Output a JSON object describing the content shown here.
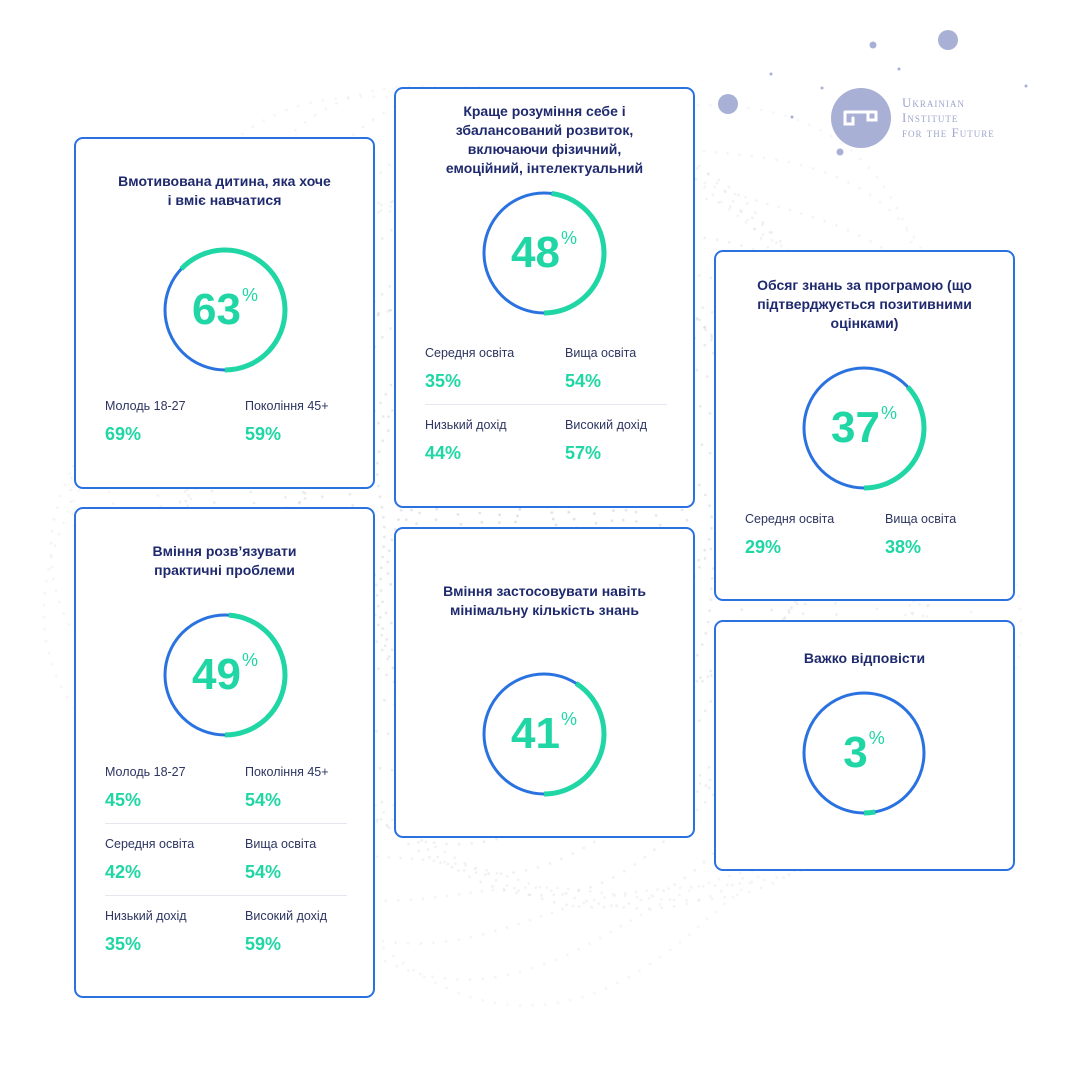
{
  "logo": {
    "lines": [
      "Ukrainian",
      "Institute",
      "for the Future"
    ],
    "icon": "key-icon"
  },
  "colors": {
    "border": "#2a72e0",
    "ring_fill": "#1fd6a4",
    "ring_track": "#2a72e0",
    "title": "#1f2a6e"
  },
  "cards": [
    {
      "id": "motivated-child",
      "title": "Вмотивована дитина, яка хоче і вміє навчатися",
      "value": "63",
      "pct_symbol": "%",
      "stats": [
        {
          "label": "Молодь 18-27",
          "value": "69%"
        },
        {
          "label": "Покоління 45+",
          "value": "59%"
        }
      ]
    },
    {
      "id": "self-understanding",
      "title": "Краще розуміння себе і збалансований розвиток, включаючи фізичний, емоційний, інтелектуальний",
      "value": "48",
      "pct_symbol": "%",
      "stats": [
        {
          "label": "Середня освіта",
          "value": "35%"
        },
        {
          "label": "Вища освіта",
          "value": "54%"
        },
        {
          "label": "Низький дохід",
          "value": "44%"
        },
        {
          "label": "Високий дохід",
          "value": "57%"
        }
      ]
    },
    {
      "id": "knowledge-volume",
      "title": "Обсяг знань за програмою (що підтверджується позитивними оцінками)",
      "value": "37",
      "pct_symbol": "%",
      "stats": [
        {
          "label": "Середня освіта",
          "value": "29%"
        },
        {
          "label": "Вища освіта",
          "value": "38%"
        }
      ]
    },
    {
      "id": "practical-problems",
      "title": "Вміння розв’язувати практичні проблеми",
      "value": "49",
      "pct_symbol": "%",
      "stats": [
        {
          "label": "Молодь 18-27",
          "value": "45%"
        },
        {
          "label": "Покоління 45+",
          "value": "54%"
        },
        {
          "label": "Середня освіта",
          "value": "42%"
        },
        {
          "label": "Вища освіта",
          "value": "54%"
        },
        {
          "label": "Низький дохід",
          "value": "35%"
        },
        {
          "label": "Високий дохід",
          "value": "59%"
        }
      ]
    },
    {
      "id": "apply-knowledge",
      "title": "Вміння застосовувати навіть мінімальну кількість знань",
      "value": "41",
      "pct_symbol": "%",
      "stats": []
    },
    {
      "id": "hard-to-answer",
      "title": "Важко відповісти",
      "value": "3",
      "pct_symbol": "%",
      "stats": []
    }
  ],
  "chart_data": {
    "type": "pie",
    "categories": [
      "Вмотивована дитина, яка хоче і вміє навчатися",
      "Краще розуміння себе і збалансований розвиток, включаючи фізичний, емоційний, інтелектуальний",
      "Обсяг знань за програмою (що підтверджується позитивними оцінками)",
      "Вміння розв’язувати практичні проблеми",
      "Вміння застосовувати навіть мінімальну кількість знань",
      "Важко відповісти"
    ],
    "values": [
      63,
      48,
      37,
      49,
      41,
      3
    ],
    "breakdowns": {
      "Вмотивована дитина, яка хоче і вміє навчатися": {
        "Молодь 18-27": 69,
        "Покоління 45+": 59
      },
      "Краще розуміння себе і збалансований розвиток, включаючи фізичний, емоційний, інтелектуальний": {
        "Середня освіта": 35,
        "Вища освіта": 54,
        "Низький дохід": 44,
        "Високий дохід": 57
      },
      "Обсяг знань за програмою (що підтверджується позитивними оцінками)": {
        "Середня освіта": 29,
        "Вища освіта": 38
      },
      "Вміння розв’язувати практичні проблеми": {
        "Молодь 18-27": 45,
        "Покоління 45+": 54,
        "Середня освіта": 42,
        "Вища освіта": 54,
        "Низький дохід": 35,
        "Високий дохід": 59
      }
    }
  }
}
